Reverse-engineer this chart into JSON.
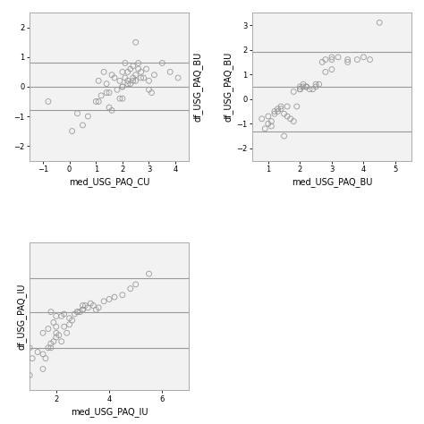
{
  "subplot1": {
    "xlabel": "med_USG_PAQ_CU",
    "ylabel": "df_USG_PAQ_BU",
    "xlim": [
      -1.5,
      4.5
    ],
    "ylim": [
      -2.5,
      2.5
    ],
    "hlines": [
      -0.8,
      0.0,
      0.8
    ],
    "xticks": [
      -1.0,
      0.0,
      1.0,
      2.0,
      3.0,
      4.0
    ],
    "yticks": [
      -2.0,
      -1.0,
      0.0,
      1.0,
      2.0
    ],
    "scatter_x": [
      -0.8,
      0.1,
      0.5,
      1.0,
      1.1,
      1.2,
      1.3,
      1.4,
      1.4,
      1.5,
      1.6,
      1.7,
      1.8,
      1.9,
      2.0,
      2.0,
      2.1,
      2.1,
      2.2,
      2.2,
      2.3,
      2.3,
      2.4,
      2.4,
      2.5,
      2.5,
      2.6,
      2.6,
      2.7,
      2.8,
      2.9,
      3.0,
      3.1,
      3.2,
      3.5,
      3.8,
      4.1,
      0.3,
      0.7,
      1.1,
      1.5,
      1.9,
      2.0,
      2.2,
      2.4,
      2.7,
      3.0,
      2.5,
      2.0,
      1.6
    ],
    "scatter_y": [
      -0.5,
      -1.5,
      -1.3,
      -0.5,
      0.2,
      -0.3,
      0.5,
      0.1,
      -0.2,
      -0.2,
      0.4,
      0.3,
      -0.1,
      0.2,
      0.5,
      -0.4,
      0.3,
      0.8,
      0.2,
      0.5,
      0.1,
      0.6,
      0.3,
      0.7,
      0.4,
      0.2,
      0.6,
      0.8,
      0.5,
      0.3,
      0.6,
      0.2,
      -0.2,
      0.4,
      0.8,
      0.5,
      0.3,
      -0.9,
      -1.0,
      -0.5,
      -0.7,
      -0.4,
      0.0,
      0.1,
      0.2,
      0.3,
      -0.1,
      1.5,
      0.0,
      -0.8
    ]
  },
  "subplot2": {
    "xlabel": "med_USG_PAQ_BU",
    "ylabel": "df_USG_PAQ_BU",
    "xlim": [
      0.5,
      5.5
    ],
    "ylim": [
      -2.5,
      3.5
    ],
    "hlines": [
      -1.3,
      0.5,
      1.9
    ],
    "xticks": [
      1.0,
      2.0,
      3.0,
      4.0,
      5.0
    ],
    "yticks": [
      -2.0,
      -1.0,
      0.0,
      1.0,
      2.0,
      3.0
    ],
    "scatter_x": [
      0.8,
      0.9,
      1.0,
      1.1,
      1.2,
      1.3,
      1.4,
      1.5,
      1.6,
      1.7,
      1.8,
      1.9,
      2.0,
      2.0,
      2.1,
      2.1,
      2.2,
      2.3,
      2.4,
      2.5,
      2.6,
      2.7,
      2.8,
      3.0,
      3.0,
      3.2,
      3.5,
      3.5,
      3.8,
      4.0,
      4.2,
      4.5,
      1.5,
      1.8,
      2.0,
      2.2,
      2.5,
      2.8,
      3.0,
      1.3,
      1.0,
      1.1,
      1.2,
      1.4,
      1.6,
      2.0,
      2.2
    ],
    "scatter_y": [
      -0.8,
      -1.2,
      -0.7,
      -0.9,
      -0.5,
      -0.4,
      -0.3,
      -0.6,
      -0.7,
      -0.8,
      -0.9,
      -0.3,
      0.4,
      0.5,
      0.5,
      0.6,
      0.5,
      0.4,
      0.4,
      0.5,
      0.6,
      1.5,
      1.6,
      1.6,
      1.7,
      1.7,
      1.6,
      1.5,
      1.6,
      1.7,
      1.6,
      3.1,
      -1.5,
      0.3,
      0.4,
      0.5,
      0.6,
      1.1,
      1.2,
      -0.5,
      -1.0,
      -1.1,
      -0.6,
      -0.4,
      -0.3,
      0.4,
      0.5
    ]
  },
  "subplot3": {
    "xlabel": "med_USG_PAQ_IU",
    "ylabel": "df_USG_PAQ_IU",
    "xlim": [
      1.0,
      7.0
    ],
    "ylim": [
      -3.5,
      3.5
    ],
    "hlines": [
      -1.5,
      0.2,
      1.8
    ],
    "xticks": [
      2.0,
      4.0,
      6.0
    ],
    "yticks": [],
    "scatter_x": [
      1.1,
      1.3,
      1.5,
      1.6,
      1.7,
      1.8,
      1.8,
      1.9,
      2.0,
      2.0,
      2.1,
      2.2,
      2.3,
      2.4,
      2.5,
      2.6,
      2.7,
      2.8,
      2.9,
      3.0,
      3.0,
      3.1,
      3.2,
      3.3,
      3.4,
      3.5,
      3.6,
      3.8,
      4.0,
      4.2,
      4.5,
      4.8,
      5.0,
      5.5,
      1.5,
      1.7,
      1.9,
      2.0,
      2.2,
      2.5,
      2.8,
      3.0,
      1.0,
      1.8,
      2.0,
      2.3,
      1.0,
      1.5
    ],
    "scatter_y": [
      -2.0,
      -1.7,
      -1.8,
      -2.0,
      -1.5,
      -1.3,
      -1.5,
      -1.2,
      -0.8,
      -1.0,
      -0.9,
      -1.2,
      -0.5,
      -0.8,
      -0.4,
      -0.2,
      0.1,
      0.2,
      0.2,
      0.3,
      0.3,
      0.5,
      0.4,
      0.6,
      0.5,
      0.3,
      0.4,
      0.7,
      0.8,
      0.9,
      1.0,
      1.3,
      1.5,
      2.0,
      -0.8,
      -0.6,
      -0.3,
      -0.5,
      0.0,
      -0.1,
      0.2,
      0.5,
      -2.8,
      0.2,
      0.0,
      0.1,
      -1.5,
      -2.5
    ]
  },
  "bg_color": "#f2f2f2",
  "scatter_color": "#999999",
  "hline_color": "#999999",
  "marker_size": 18,
  "marker_facecolor": "none",
  "tick_labelsize": 6,
  "label_fontsize": 7,
  "fig_bg": "#ffffff"
}
